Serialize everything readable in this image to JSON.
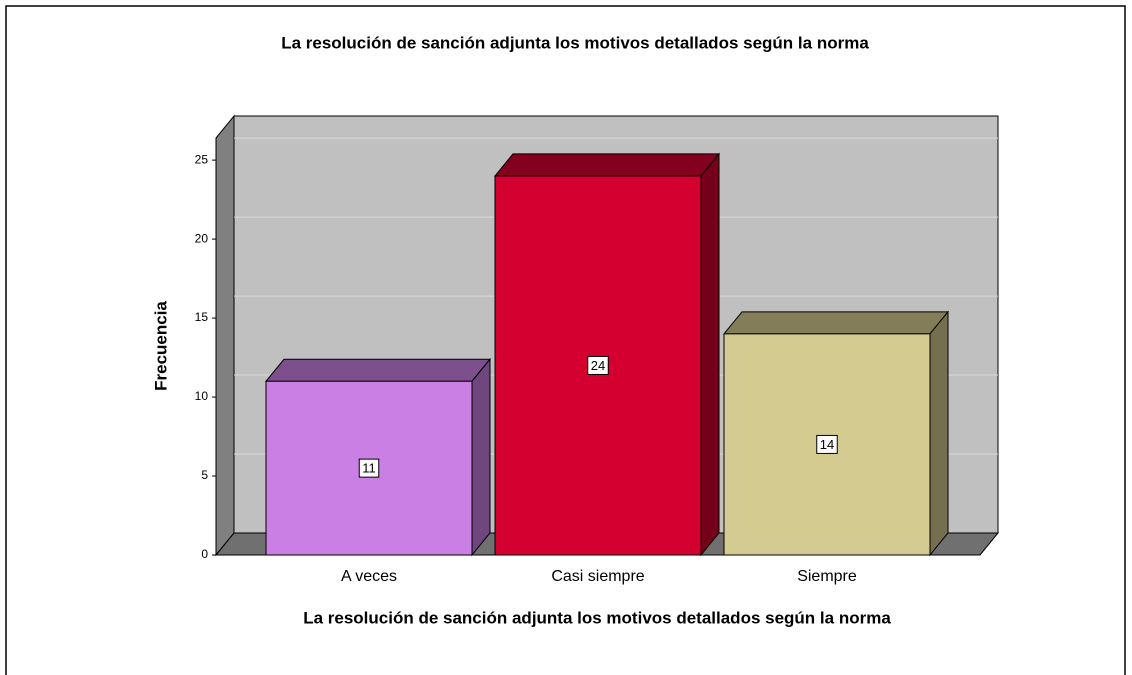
{
  "chart_data": {
    "type": "bar3d",
    "title": "La resolución de sanción adjunta los motivos detallados según la norma",
    "x_label": "La resolución de sanción adjunta los motivos detallados según la norma",
    "y_label": "Frecuencia",
    "categories": [
      "A veces",
      "Casi siempre",
      "Siempre"
    ],
    "values": [
      11,
      24,
      14
    ],
    "colors": [
      "#c97fe3",
      "#d40030",
      "#d3cb90"
    ],
    "ylim": [
      0,
      26.4
    ],
    "yticks": [
      0,
      5,
      10,
      15,
      20,
      25
    ],
    "grid": true
  }
}
